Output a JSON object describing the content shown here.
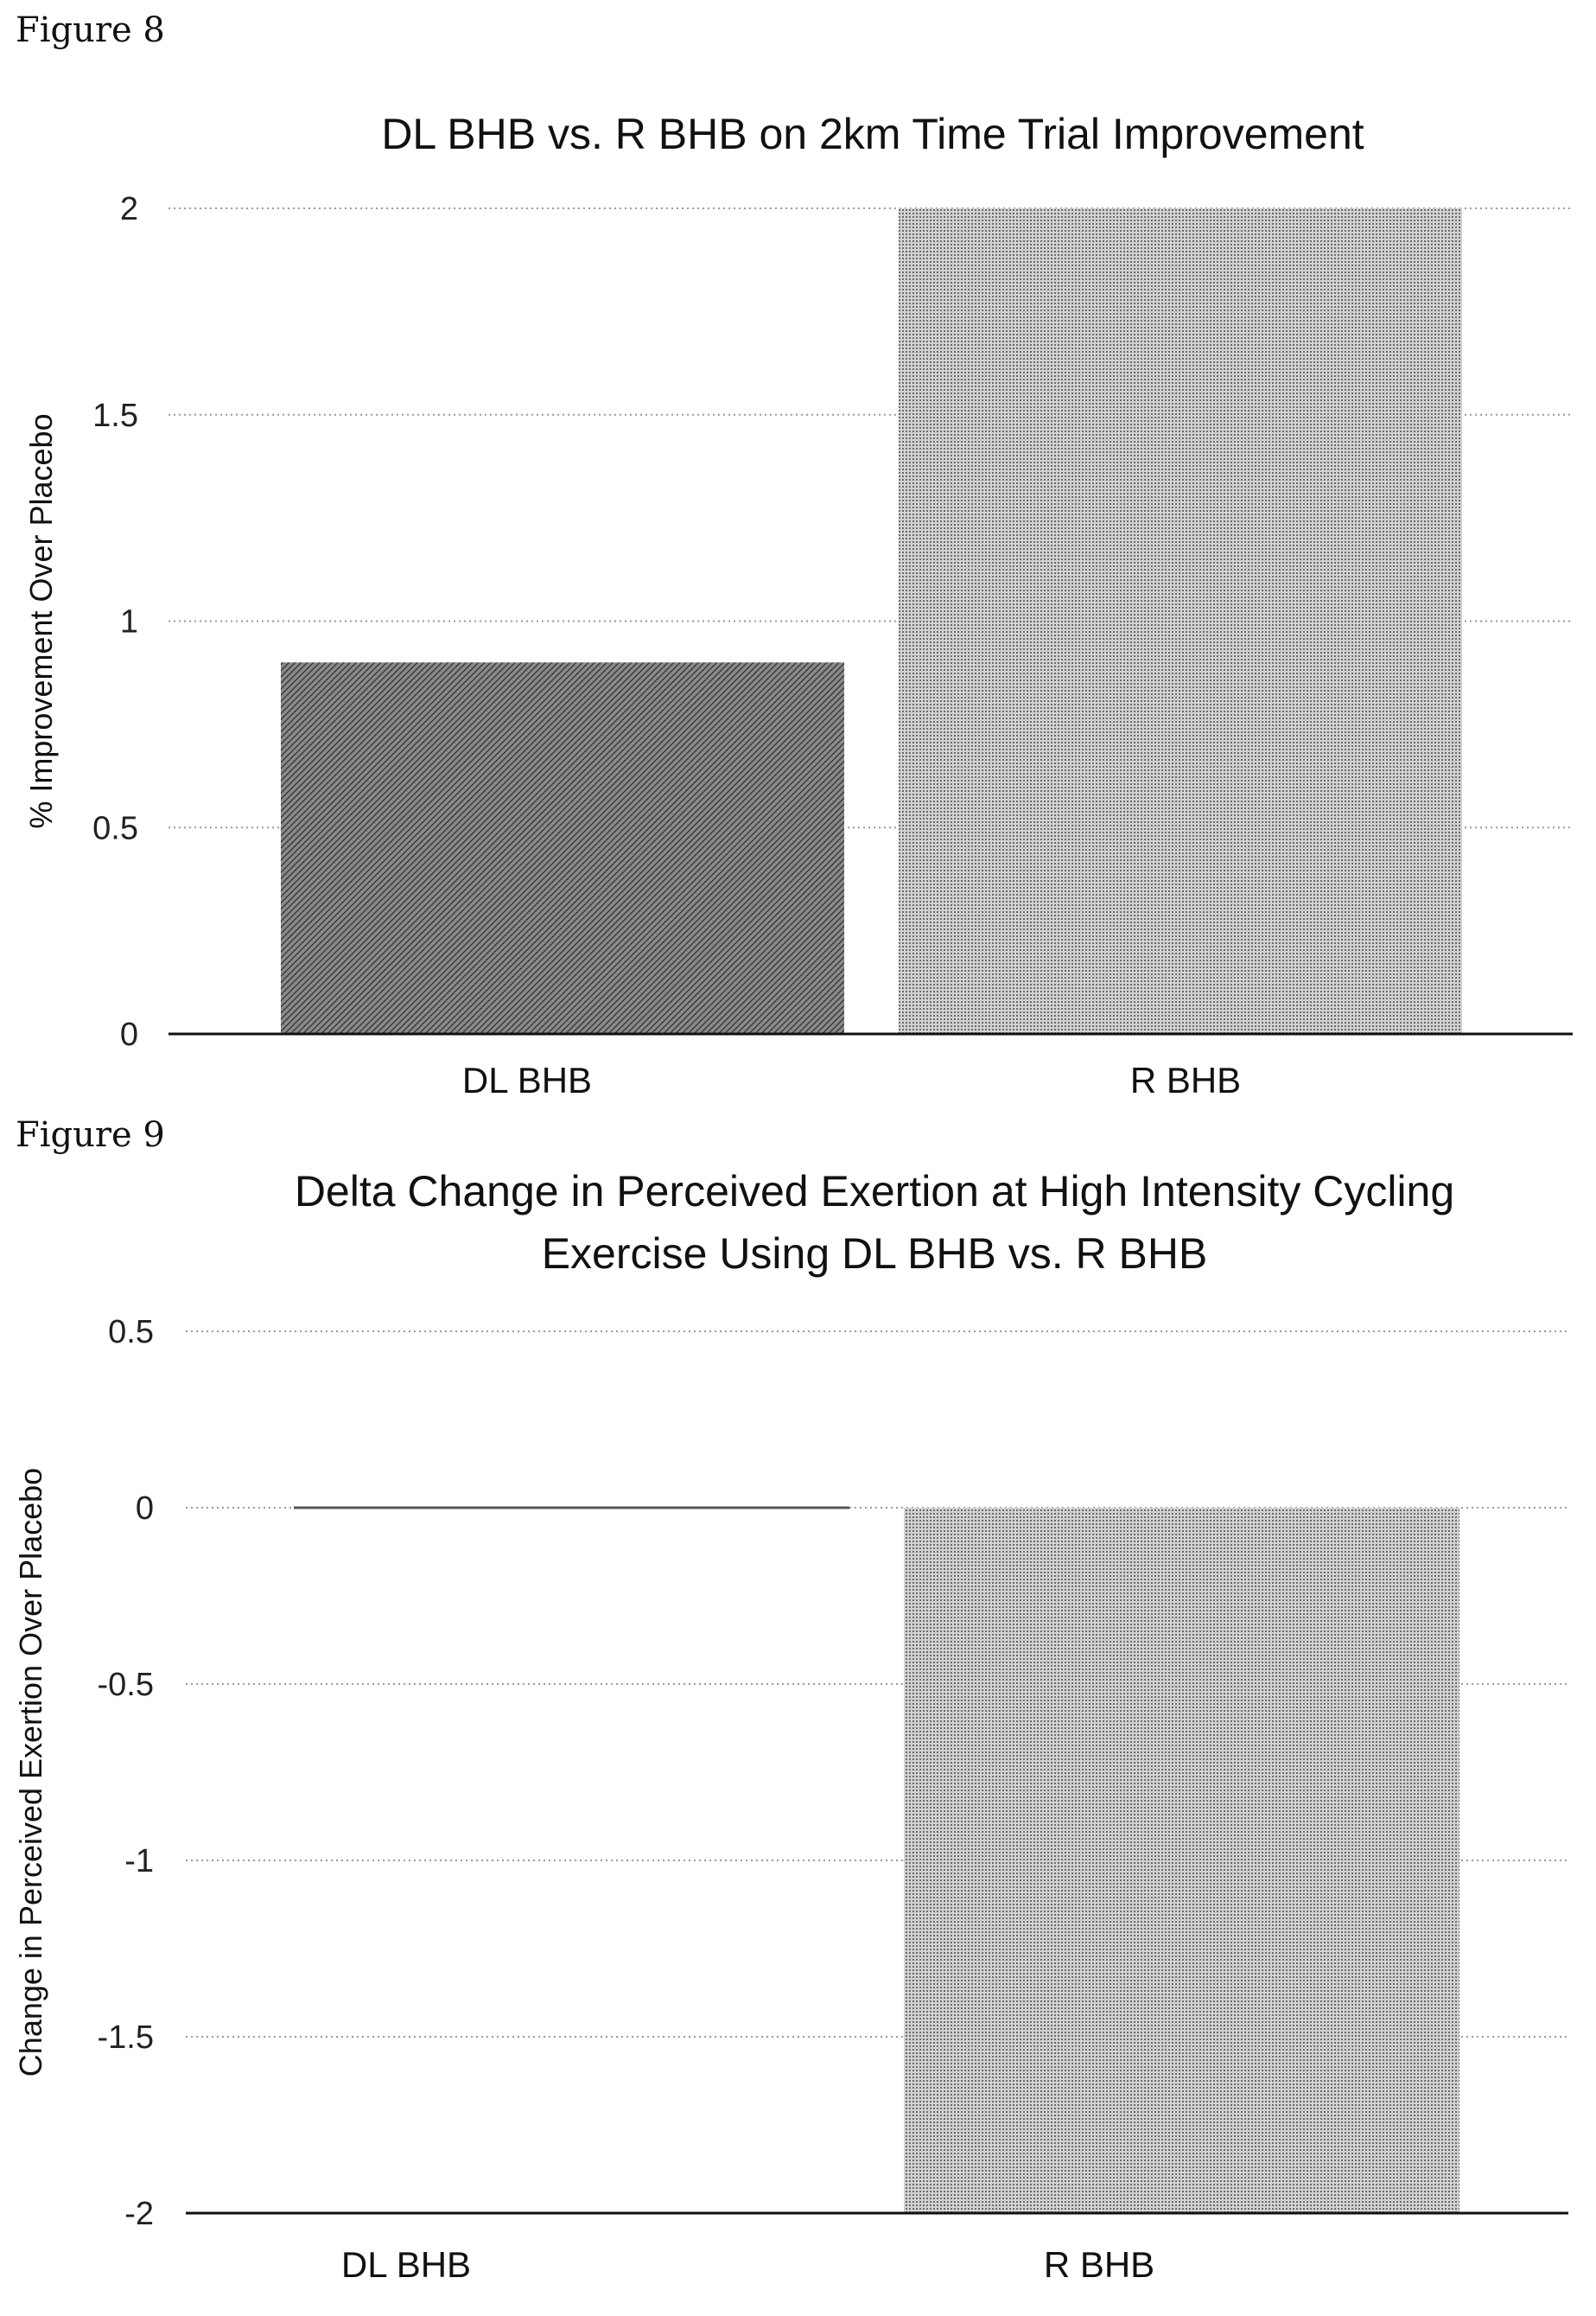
{
  "figures": [
    {
      "label": "Figure 8",
      "chart_data": {
        "type": "bar",
        "title": "DL BHB vs. R BHB on 2km Time Trial Improvement",
        "title_lines": [
          "DL BHB vs. R BHB on 2km Time Trial Improvement"
        ],
        "xlabel": "",
        "ylabel": "% Improvement Over Placebo",
        "categories": [
          "DL BHB",
          "R BHB"
        ],
        "values": [
          0.9,
          2
        ],
        "ylim": [
          0,
          2
        ],
        "yticks": [
          0,
          0.5,
          1,
          1.5,
          2
        ],
        "ytick_labels": [
          "0",
          "0.5",
          "1",
          "1.5",
          "2"
        ],
        "bar_colors": [
          "#6e6e6e",
          "#b8b8b8"
        ],
        "grid": true,
        "legend": "none"
      }
    },
    {
      "label": "Figure 9",
      "chart_data": {
        "type": "bar",
        "title": "Delta Change in Perceived Exertion at High Intensity Cycling Exercise Using DL BHB vs. R BHB",
        "title_lines": [
          "Delta Change in Perceived Exertion at High Intensity Cycling",
          "Exercise Using DL BHB vs. R BHB"
        ],
        "xlabel": "",
        "ylabel": "Change in Perceived Exertion Over Placebo",
        "categories": [
          "DL BHB",
          "R BHB"
        ],
        "values": [
          0,
          -2
        ],
        "ylim": [
          -2,
          0.5
        ],
        "yticks": [
          -2,
          -1.5,
          -1,
          -0.5,
          0,
          0.5
        ],
        "ytick_labels": [
          "-2",
          "-1.5",
          "-1",
          "-0.5",
          "0",
          "0.5"
        ],
        "bar_colors": [
          "#6e6e6e",
          "#b8b8b8"
        ],
        "grid": true,
        "legend": "none"
      }
    }
  ]
}
